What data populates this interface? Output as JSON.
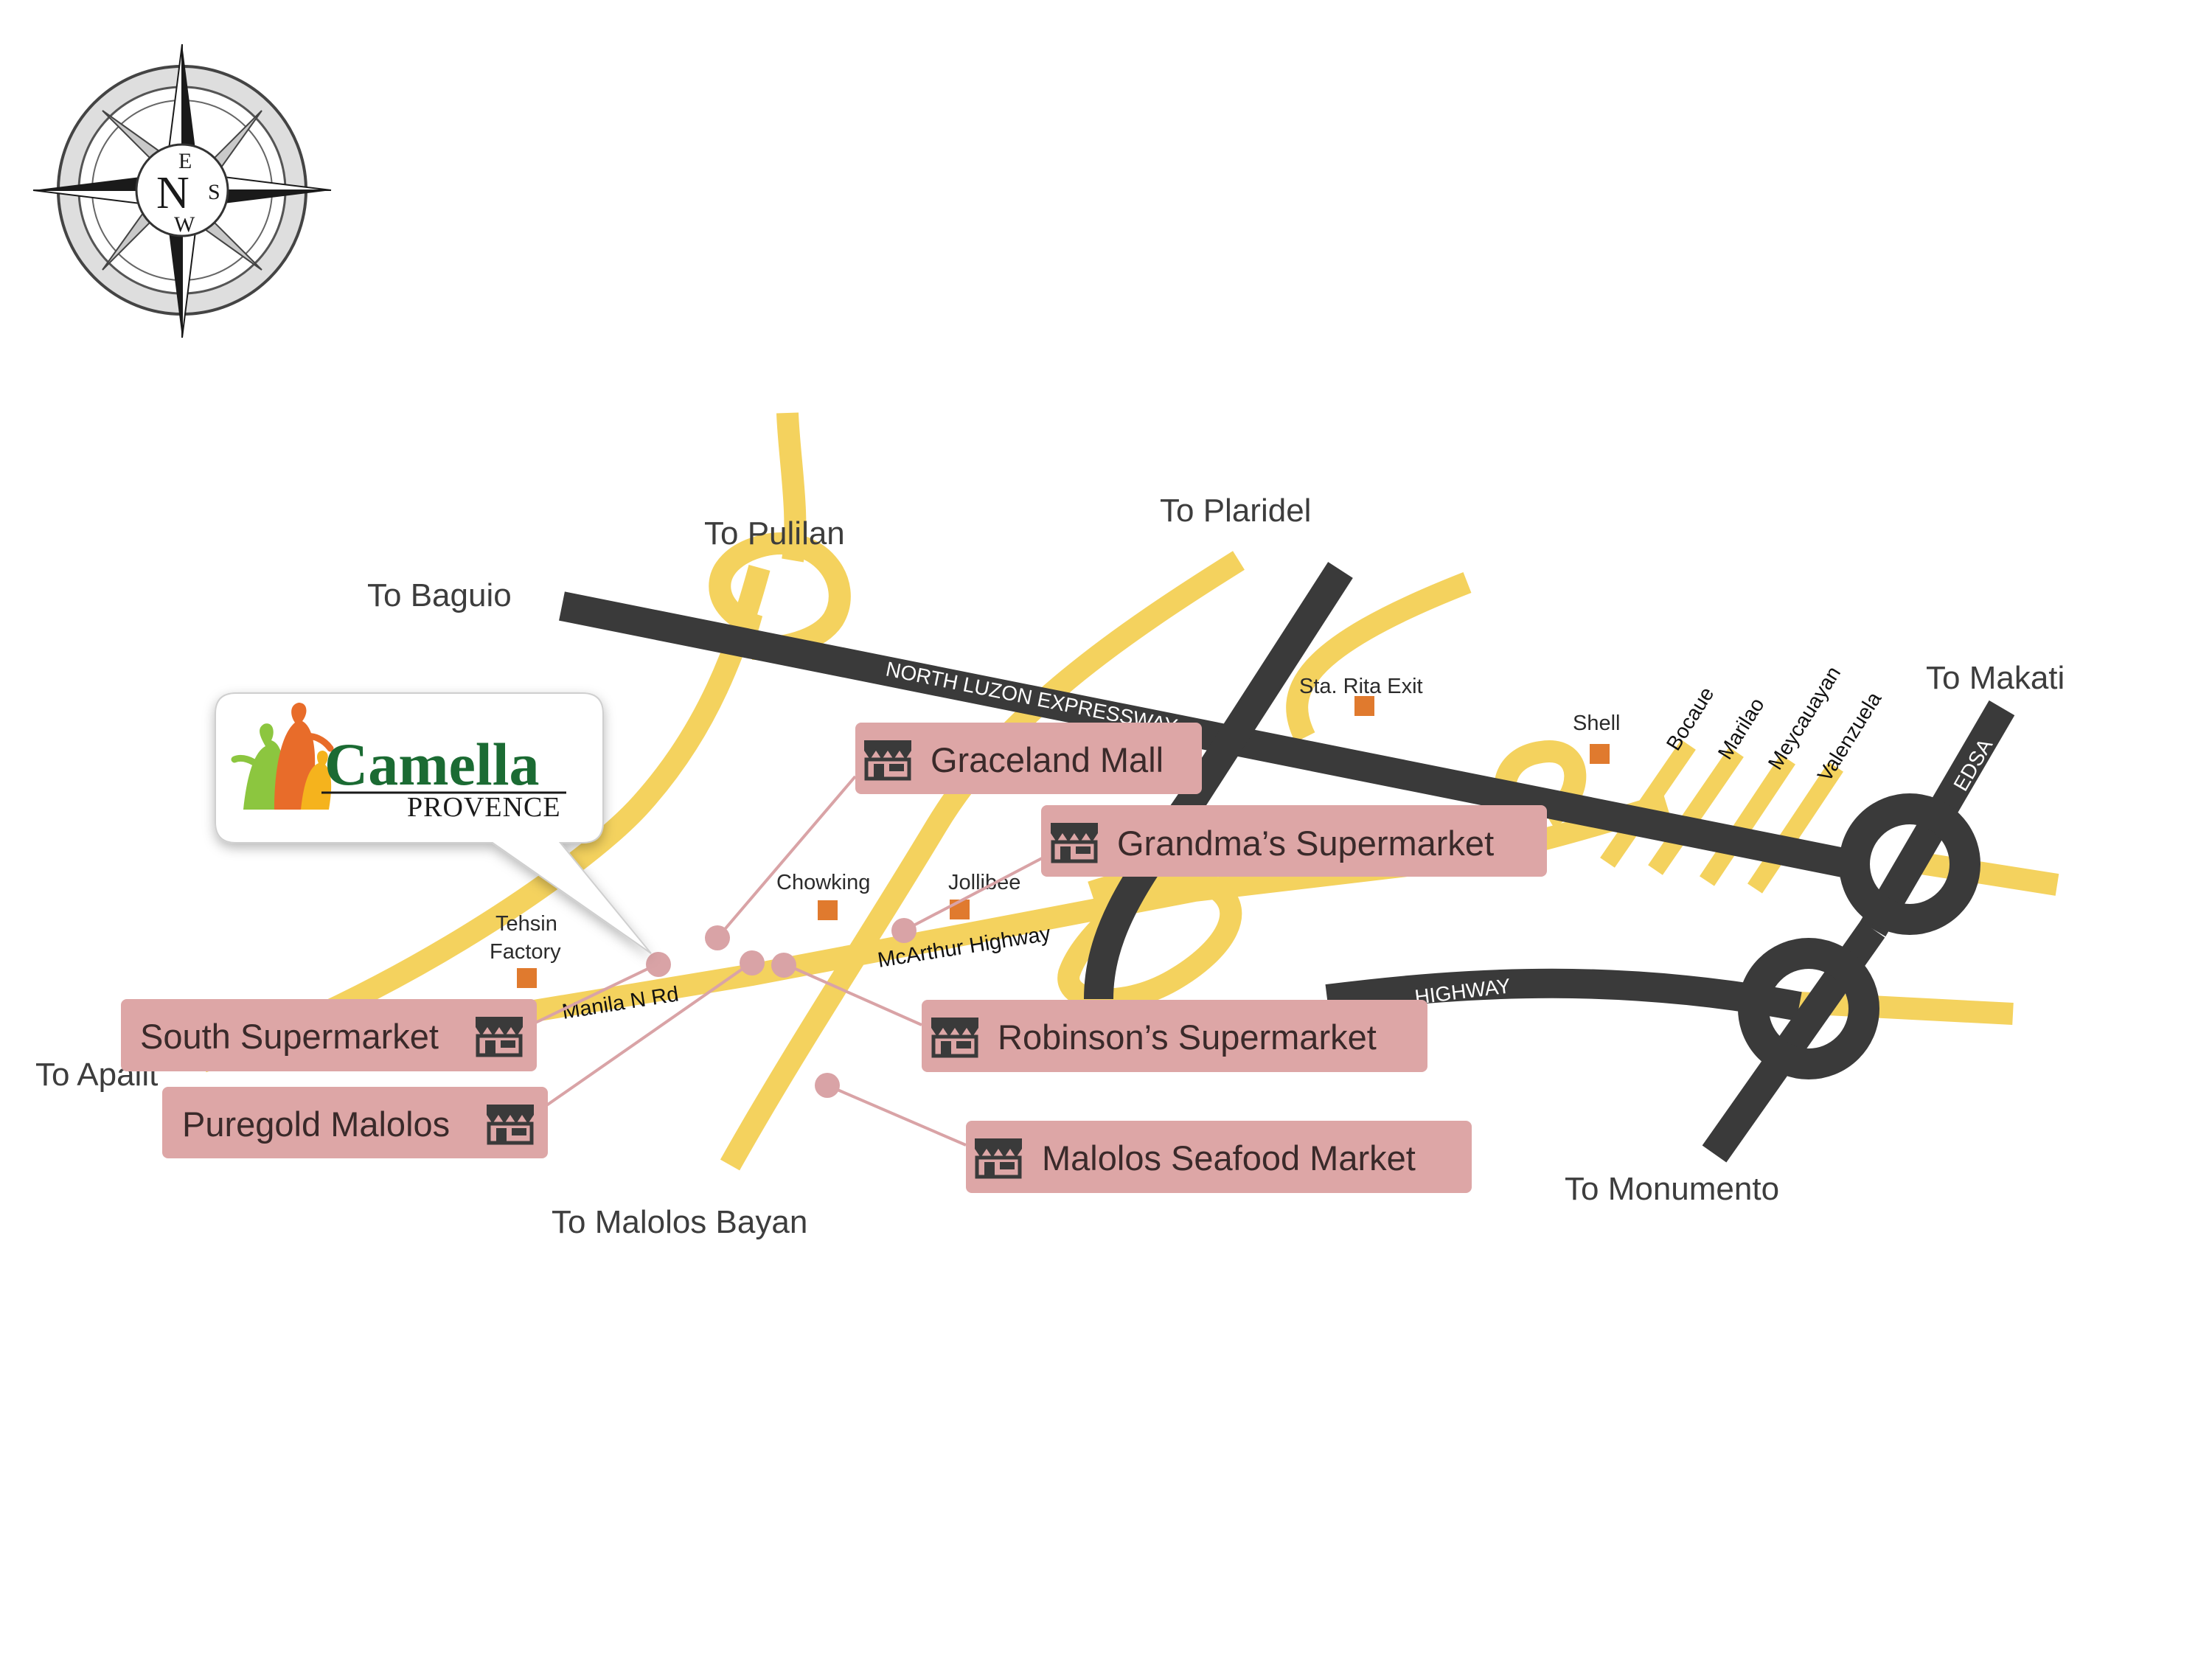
{
  "compass": {
    "labels": {
      "n": "N",
      "e": "E",
      "s": "S",
      "w": "W"
    },
    "icon": "compass-rose-icon"
  },
  "brand": {
    "name": "Camella",
    "sub": "PROVENCE",
    "logo_icon": "family-figures-logo",
    "color": "#1b6b33"
  },
  "destinations": {
    "baguio": "To Baguio",
    "pulilan": "To Pulilan",
    "plaridel": "To Plaridel",
    "makati": "To Makati",
    "apalit": "To Apalit",
    "malolos_bayan": "To Malolos Bayan",
    "monumento": "To Monumento"
  },
  "roads": {
    "nlex": "NORTH LUZON EXPRESSWAY",
    "mcarthur": "McArthur Highway",
    "manila_n_rd": "Manila N Rd",
    "highway_fragment": "HIGHWAY",
    "edsa": "EDSA"
  },
  "exits": [
    "Bocaue",
    "Marilao",
    "Meycauayan",
    "Valenzuela"
  ],
  "landmarks": {
    "sta_rita": "Sta. Rita Exit",
    "shell": "Shell",
    "chowking": "Chowking",
    "jollibee": "Jollibee",
    "tehsin_line1": "Tehsin",
    "tehsin_line2": "Factory"
  },
  "stores": {
    "graceland": "Graceland Mall",
    "grandmas": "Grandma’s Supermarket",
    "south": "South Supermarket",
    "puregold": "Puregold Malolos",
    "robinsons": "Robinson’s Supermarket",
    "seafood": "Malolos Seafood Market",
    "icon": "storefront-icon"
  },
  "colors": {
    "minor_road": "#f4d25e",
    "expressway": "#3a3a3a",
    "landmark": "#e07a2e",
    "store_label_bg": "#dda6a6",
    "store_pin": "#d9a3a6"
  }
}
